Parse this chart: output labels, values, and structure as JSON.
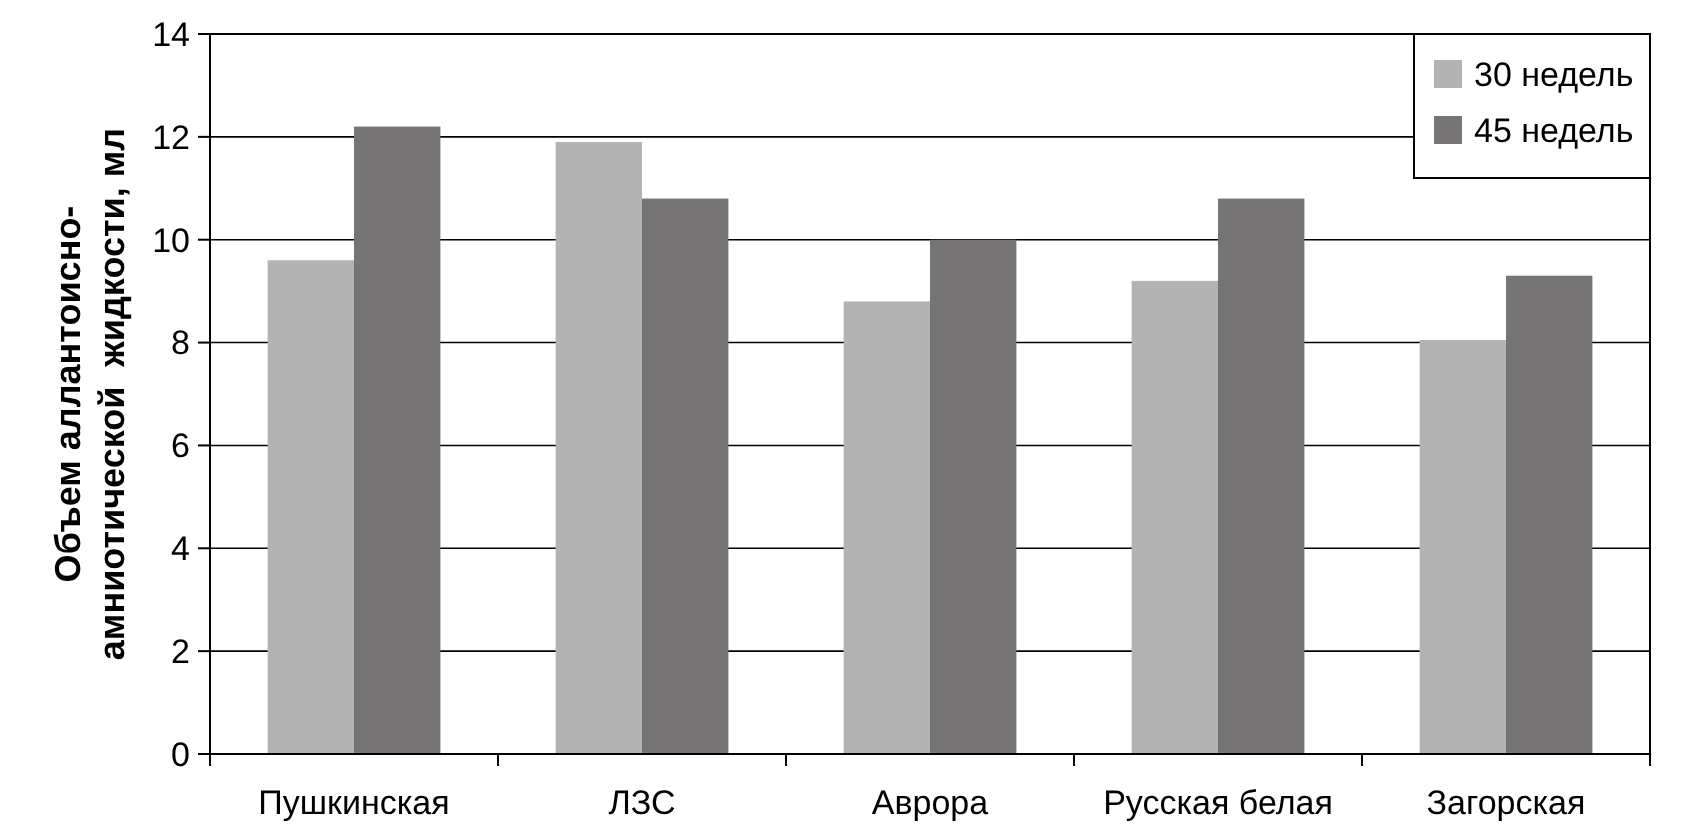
{
  "chart_data": {
    "type": "bar",
    "ylabel": "Объем аллантоисно-\nамниотической  жидкости, мл",
    "categories": [
      "Пушкинская",
      "ЛЗС",
      "Аврора",
      "Русская белая",
      "Загорская"
    ],
    "series": [
      {
        "name": "30 недель",
        "color": "#b3b3b3",
        "values": [
          9.6,
          11.9,
          8.8,
          9.2,
          8.05
        ]
      },
      {
        "name": "45 недель",
        "color": "#767475",
        "values": [
          12.2,
          10.8,
          10.0,
          10.8,
          9.3
        ]
      }
    ],
    "ylim": [
      0,
      14
    ],
    "yticks": [
      0,
      2,
      4,
      6,
      8,
      10,
      12,
      14
    ],
    "grid": "y",
    "legend": "top right"
  }
}
